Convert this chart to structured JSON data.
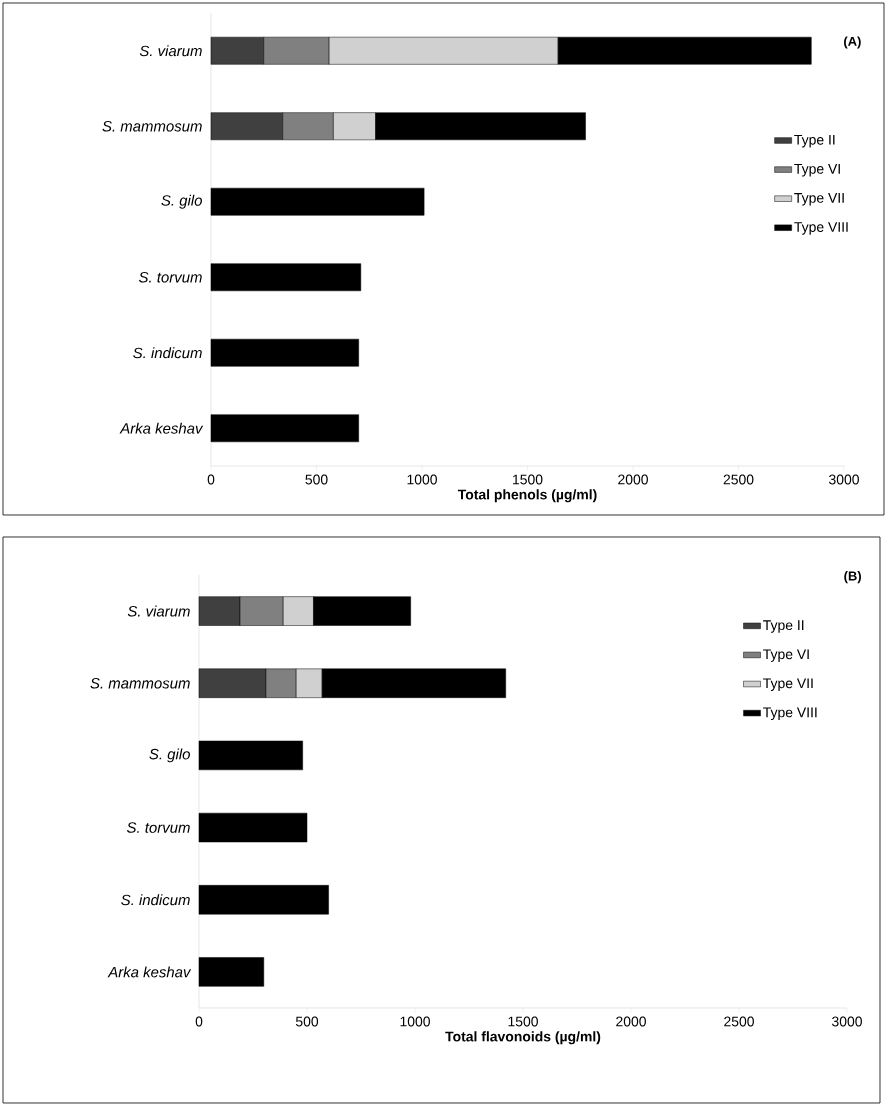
{
  "chart_data": [
    {
      "type": "bar",
      "orientation": "horizontal",
      "stacked": true,
      "annotations": [
        "(A)"
      ],
      "xlabel": "Total phenols (µg/ml)",
      "categories": [
        "S. viarum",
        "S. mammosum",
        "S. gilo",
        "S. torvum",
        "S. indicum",
        "Arka keshav"
      ],
      "series": [
        {
          "name": "Type II",
          "color": "#404040",
          "values": [
            250,
            340,
            null,
            null,
            null,
            null
          ]
        },
        {
          "name": "Type VI",
          "color": "#808080",
          "values": [
            310,
            240,
            null,
            null,
            null,
            null
          ]
        },
        {
          "name": "Type VII",
          "color": "#d0d0d0",
          "values": [
            1085,
            200,
            null,
            null,
            null,
            null
          ]
        },
        {
          "name": "Type VIII",
          "color": "#000000",
          "values": [
            1200,
            995,
            1010,
            710,
            700,
            700
          ]
        }
      ],
      "xlim": [
        0,
        3000
      ],
      "xticks": [
        0,
        500,
        1000,
        1500,
        2000,
        2500,
        3000
      ],
      "legend": "right"
    },
    {
      "type": "bar",
      "orientation": "horizontal",
      "stacked": true,
      "annotations": [
        "(B)"
      ],
      "xlabel": "Total flavonoids (µg/ml)",
      "categories": [
        "S. viarum",
        "S. mammosum",
        "S. gilo",
        "S. torvum",
        "S. indicum",
        "Arka keshav"
      ],
      "series": [
        {
          "name": "Type II",
          "color": "#404040",
          "values": [
            190,
            310,
            null,
            null,
            null,
            null
          ]
        },
        {
          "name": "Type VI",
          "color": "#808080",
          "values": [
            200,
            140,
            null,
            null,
            null,
            null
          ]
        },
        {
          "name": "Type VII",
          "color": "#d0d0d0",
          "values": [
            140,
            120,
            null,
            null,
            null,
            null
          ]
        },
        {
          "name": "Type VIII",
          "color": "#000000",
          "values": [
            450,
            850,
            480,
            500,
            600,
            300
          ]
        }
      ],
      "xlim": [
        0,
        3000
      ],
      "xticks": [
        0,
        500,
        1000,
        1500,
        2000,
        2500,
        3000
      ],
      "legend": "right"
    }
  ]
}
